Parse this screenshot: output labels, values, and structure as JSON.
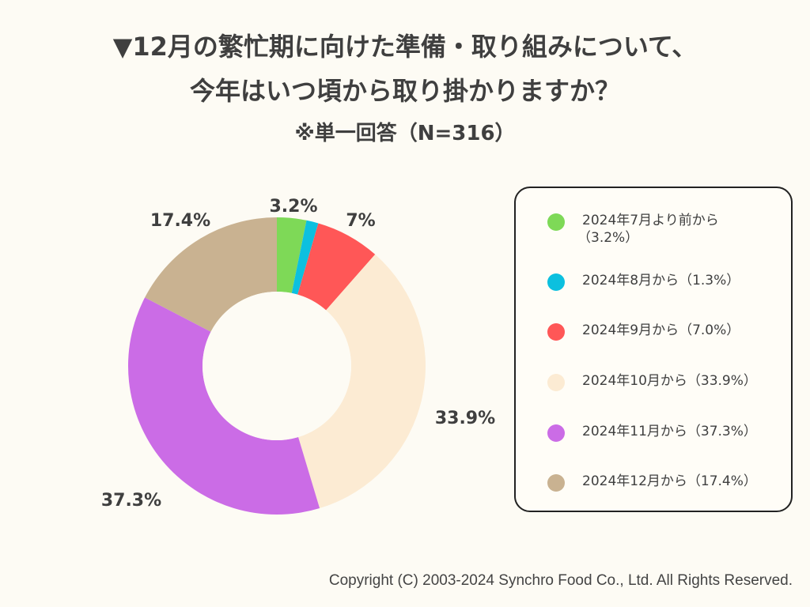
{
  "title": {
    "line1": "▼12月の繁忙期に向けた準備・取り組みについて、",
    "line2": "今年はいつ頃から取り掛かりますか？",
    "line3": "※単一回答（N=316）"
  },
  "chart_data": {
    "type": "pie",
    "donut": true,
    "slices": [
      {
        "name": "2024年7月より前から（3.2%）",
        "value": 3.2,
        "label": "3.2%",
        "color": "#7ed957"
      },
      {
        "name": "2024年8月から（1.3%）",
        "value": 1.3,
        "label": "",
        "color": "#0cc0df"
      },
      {
        "name": "2024年9月から（7.0%）",
        "value": 7.0,
        "label": "7%",
        "color": "#ff5757"
      },
      {
        "name": "2024年10月から（33.9%）",
        "value": 33.9,
        "label": "33.9%",
        "color": "#fcebd3"
      },
      {
        "name": "2024年11月から（37.3%）",
        "value": 37.3,
        "label": "37.3%",
        "color": "#cb6ce6"
      },
      {
        "name": "2024年12月から（17.4%）",
        "value": 17.4,
        "label": "17.4%",
        "color": "#c9b291"
      }
    ]
  },
  "legend": {
    "items": [
      {
        "line1": "2024年7月より前から",
        "line2": "（3.2%）",
        "color": "#7ed957"
      },
      {
        "line1": "2024年8月から（1.3%）",
        "line2": "",
        "color": "#0cc0df"
      },
      {
        "line1": "2024年9月から（7.0%）",
        "line2": "",
        "color": "#ff5757"
      },
      {
        "line1": "2024年10月から（33.9%）",
        "line2": "",
        "color": "#fcebd3"
      },
      {
        "line1": "2024年11月から（37.3%）",
        "line2": "",
        "color": "#cb6ce6"
      },
      {
        "line1": "2024年12月から（17.4%）",
        "line2": "",
        "color": "#c9b291"
      }
    ]
  },
  "copyright": "Copyright (C) 2003-2024  Synchro Food Co., Ltd. All Rights Reserved."
}
